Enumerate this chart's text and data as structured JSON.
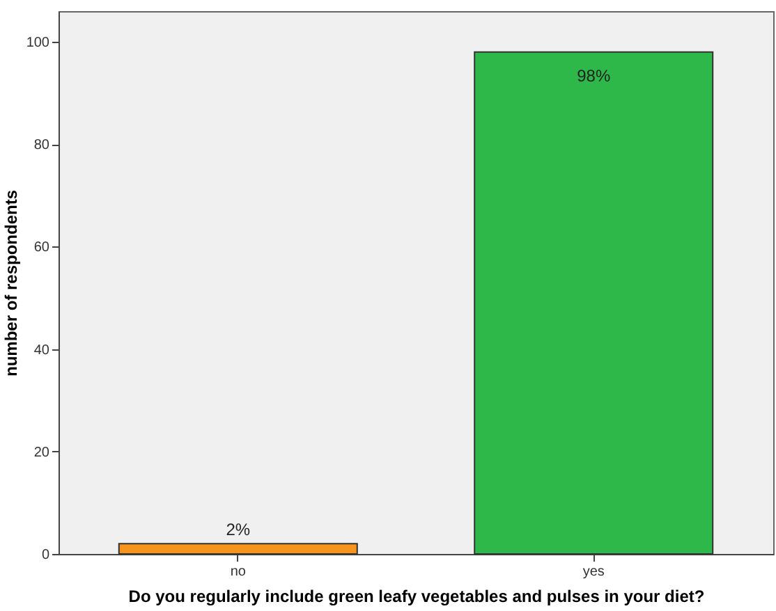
{
  "chart_data": {
    "type": "bar",
    "xlabel": "Do you regularly include green leafy vegetables and pulses in your diet?",
    "ylabel": "number of respondents",
    "categories": [
      "no",
      "yes"
    ],
    "values": [
      2,
      98
    ],
    "colors": [
      "#f7941d",
      "#2fb84a"
    ],
    "value_labels": [
      "2%",
      "98%"
    ],
    "ylim": [
      0,
      106
    ],
    "yticks": [
      0,
      20,
      40,
      60,
      80,
      100
    ],
    "grid": false
  }
}
